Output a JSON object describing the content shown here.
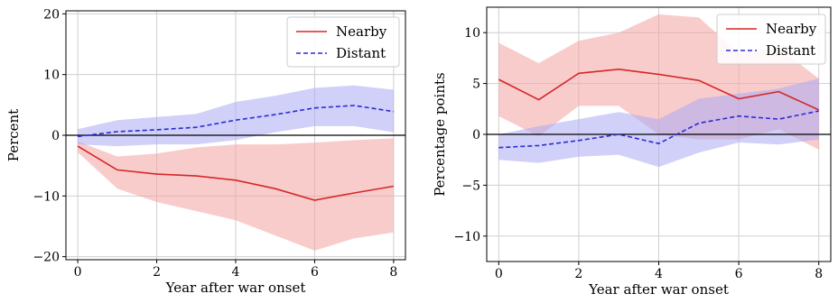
{
  "chart_data": [
    {
      "type": "line",
      "title": "",
      "xlabel": "Year after war onset",
      "ylabel": "Percent",
      "xlim": [
        -0.3,
        8.3
      ],
      "ylim": [
        -20.5,
        20.5
      ],
      "xticks": [
        0,
        2,
        4,
        6,
        8
      ],
      "yticks": [
        -20,
        -10,
        0,
        10,
        20
      ],
      "xtick_labels": [
        "0",
        "2",
        "4",
        "6",
        "8"
      ],
      "ytick_labels": [
        "−20",
        "−10",
        "0",
        "10",
        "20"
      ],
      "grid": true,
      "zero_line": true,
      "legend_position": "top-right",
      "x": [
        0,
        1,
        2,
        3,
        4,
        5,
        6,
        7,
        8
      ],
      "series": [
        {
          "name": "Nearby",
          "style": "solid",
          "color": "#d62728",
          "band_color": "#f4a3a3",
          "values": [
            -1.8,
            -5.7,
            -6.4,
            -6.7,
            -7.4,
            -8.8,
            -10.7,
            -9.5,
            -8.4
          ],
          "lower": [
            -2.8,
            -8.8,
            -11.0,
            -12.5,
            -14.0,
            -16.5,
            -19.0,
            -17.0,
            -16.0
          ],
          "upper": [
            -1.0,
            -3.5,
            -3.0,
            -2.0,
            -1.5,
            -1.5,
            -1.2,
            -0.8,
            -0.5
          ]
        },
        {
          "name": "Distant",
          "style": "dashed",
          "color": "#2b2bd6",
          "band_color": "#a9a9f4",
          "values": [
            -0.2,
            0.6,
            0.9,
            1.3,
            2.5,
            3.4,
            4.5,
            4.9,
            3.9
          ],
          "lower": [
            -1.5,
            -1.8,
            -1.5,
            -1.5,
            -0.8,
            0.5,
            1.5,
            1.5,
            0.5
          ],
          "upper": [
            1.0,
            2.5,
            3.0,
            3.5,
            5.5,
            6.5,
            7.8,
            8.2,
            7.5
          ]
        }
      ]
    },
    {
      "type": "line",
      "title": "",
      "xlabel": "Year after war onset",
      "ylabel": "Percentage points",
      "xlim": [
        -0.3,
        8.3
      ],
      "ylim": [
        -12.5,
        12.5
      ],
      "xticks": [
        0,
        2,
        4,
        6,
        8
      ],
      "yticks": [
        -10,
        -5,
        0,
        5,
        10
      ],
      "xtick_labels": [
        "0",
        "2",
        "4",
        "6",
        "8"
      ],
      "ytick_labels": [
        "−10",
        "−5",
        "0",
        "5",
        "10"
      ],
      "grid": true,
      "zero_line": true,
      "legend_position": "top-right",
      "x": [
        0,
        1,
        2,
        3,
        4,
        5,
        6,
        7,
        8
      ],
      "series": [
        {
          "name": "Nearby",
          "style": "solid",
          "color": "#d62728",
          "band_color": "#f4a3a3",
          "values": [
            5.4,
            3.4,
            6.0,
            6.4,
            5.9,
            5.3,
            3.5,
            4.2,
            2.4
          ],
          "lower": [
            1.8,
            -0.2,
            2.8,
            2.8,
            0.0,
            -0.5,
            -0.5,
            0.5,
            -1.5
          ],
          "upper": [
            9.0,
            7.0,
            9.2,
            10.0,
            11.8,
            11.5,
            8.0,
            8.5,
            5.5
          ]
        },
        {
          "name": "Distant",
          "style": "dashed",
          "color": "#2b2bd6",
          "band_color": "#a9a9f4",
          "values": [
            -1.3,
            -1.1,
            -0.6,
            0.0,
            -0.9,
            1.1,
            1.8,
            1.5,
            2.3
          ],
          "lower": [
            -2.5,
            -2.8,
            -2.2,
            -2.0,
            -3.2,
            -1.8,
            -0.8,
            -1.0,
            -0.5
          ],
          "upper": [
            0.0,
            0.8,
            1.5,
            2.2,
            1.5,
            3.5,
            4.0,
            4.5,
            5.5
          ]
        }
      ]
    }
  ]
}
